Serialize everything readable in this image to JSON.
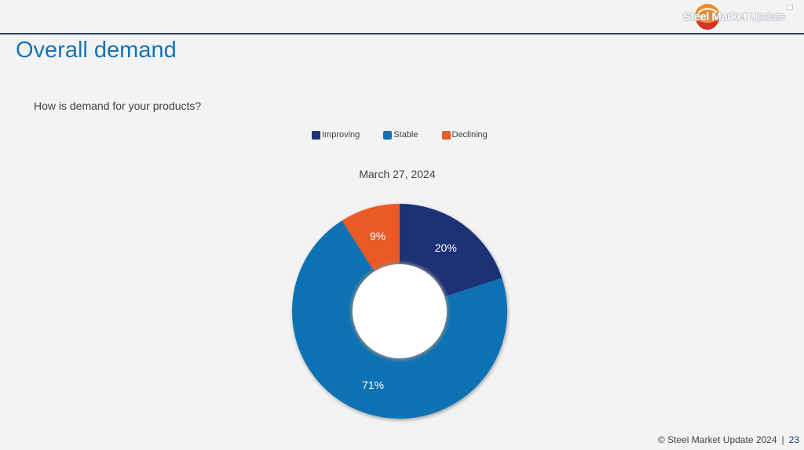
{
  "header": {
    "logo_bold": "Steel Market",
    "logo_light": "Update",
    "accent_color": "#2b3a6b"
  },
  "slide": {
    "title": "Overall demand",
    "question": "How is demand for your products?"
  },
  "chart_data": {
    "type": "pie",
    "donut": true,
    "title": "March 27, 2024",
    "legend_position": "top",
    "categories": [
      "Improving",
      "Stable",
      "Declining"
    ],
    "values": [
      20,
      71,
      9
    ],
    "value_labels": [
      "20%",
      "71%",
      "9%"
    ],
    "colors": [
      "#1f3275",
      "#1172b3",
      "#ea5a28"
    ]
  },
  "footer": {
    "copyright": "© Steel Market Update 2024",
    "separator": "|",
    "page_number": "23"
  }
}
